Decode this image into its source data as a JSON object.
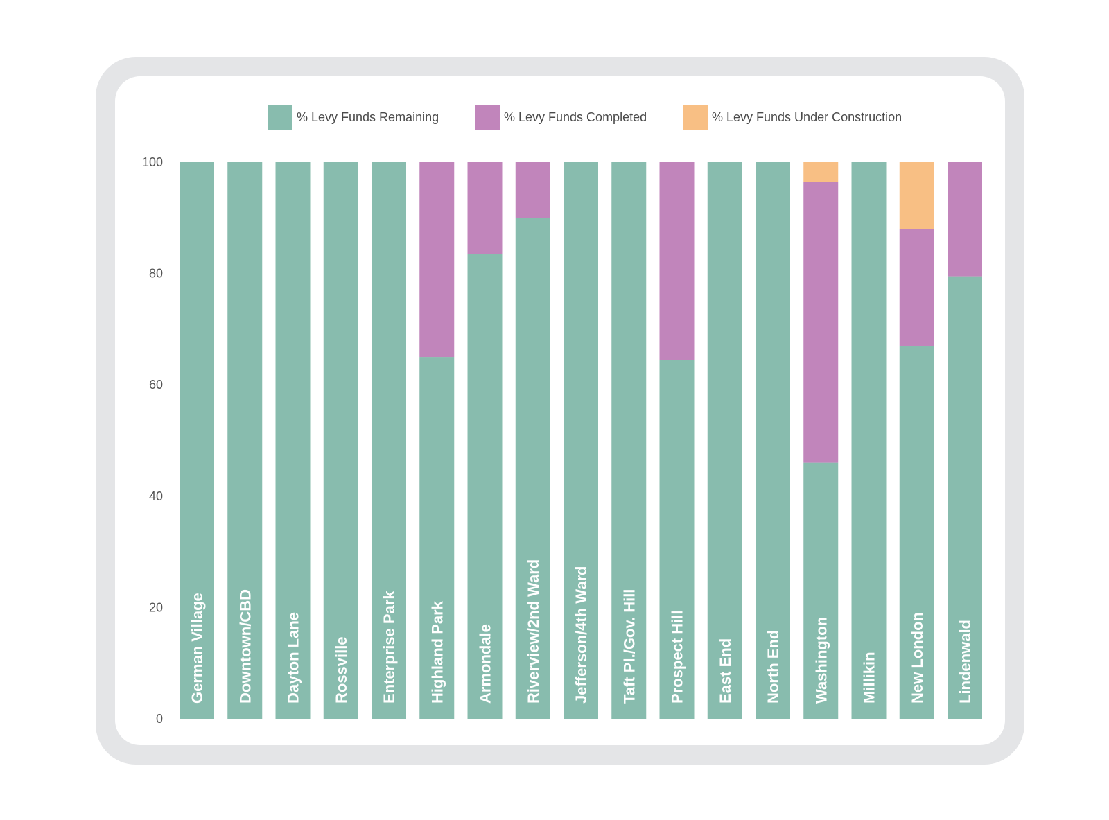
{
  "colors": {
    "remaining": "#88bcae",
    "completed": "#c185bb",
    "construction": "#f8bf84",
    "frame": "#e4e5e7"
  },
  "legend": [
    {
      "key": "remaining",
      "label": "% Levy Funds Remaining"
    },
    {
      "key": "completed",
      "label": "% Levy Funds Completed"
    },
    {
      "key": "construction",
      "label": "% Levy Funds Under Construction"
    }
  ],
  "chart_data": {
    "type": "bar",
    "stacked": true,
    "categories": [
      "German Village",
      "Downtown/CBD",
      "Dayton Lane",
      "Rossville",
      "Enterprise Park",
      "Highland Park",
      "Armondale",
      "Riverview/2nd Ward",
      "Jefferson/4th Ward",
      "Taft Pl./Gov. Hill",
      "Prospect Hill",
      "East End",
      "North End",
      "Washington",
      "Millikin",
      "New London",
      "Lindenwald"
    ],
    "series": [
      {
        "name": "% Levy Funds Remaining",
        "key": "remaining",
        "values": [
          100,
          100,
          100,
          100,
          100,
          65,
          83.5,
          90,
          100,
          100,
          64.5,
          100,
          100,
          46,
          100,
          67,
          79.5
        ]
      },
      {
        "name": "% Levy Funds Completed",
        "key": "completed",
        "values": [
          0,
          0,
          0,
          0,
          0,
          35,
          16.5,
          10,
          0,
          0,
          35.5,
          0,
          0,
          50.5,
          0,
          21,
          20.5
        ]
      },
      {
        "name": "% Levy Funds Under Construction",
        "key": "construction",
        "values": [
          0,
          0,
          0,
          0,
          0,
          0,
          0,
          0,
          0,
          0,
          0,
          0,
          0,
          3.5,
          0,
          12,
          0
        ]
      }
    ],
    "yticks": [
      0,
      20,
      40,
      60,
      80,
      100
    ],
    "ylim": [
      0,
      100
    ],
    "grid": false,
    "legend_position": "top",
    "xlabel": "",
    "ylabel": "",
    "title": ""
  }
}
